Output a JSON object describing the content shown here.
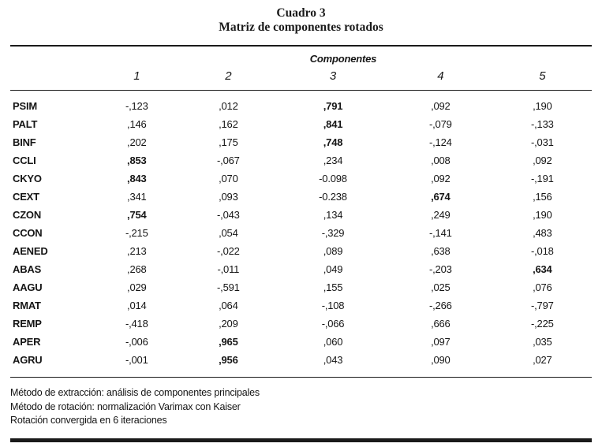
{
  "title": {
    "line1": "Cuadro 3",
    "line2": "Matriz de componentes rotados"
  },
  "table": {
    "group_header": "Componentes",
    "columns": [
      "1",
      "2",
      "3",
      "4",
      "5"
    ],
    "rows": [
      {
        "label": "PSIM",
        "values": [
          "-,123",
          ",012",
          ",791",
          ",092",
          ",190"
        ],
        "bold": [
          2
        ]
      },
      {
        "label": "PALT",
        "values": [
          ",146",
          ",162",
          ",841",
          "-,079",
          "-,133"
        ],
        "bold": [
          2
        ]
      },
      {
        "label": "BINF",
        "values": [
          ",202",
          ",175",
          ",748",
          "-,124",
          "-,031"
        ],
        "bold": [
          2
        ]
      },
      {
        "label": "CCLI",
        "values": [
          ",853",
          "-,067",
          ",234",
          ",008",
          ",092"
        ],
        "bold": [
          0
        ]
      },
      {
        "label": "CKYO",
        "values": [
          ",843",
          ",070",
          "-0.098",
          ",092",
          "-,191"
        ],
        "bold": [
          0
        ]
      },
      {
        "label": "CEXT",
        "values": [
          ",341",
          ",093",
          "-0.238",
          ",674",
          ",156"
        ],
        "bold": [
          3
        ]
      },
      {
        "label": "CZON",
        "values": [
          ",754",
          "-,043",
          ",134",
          ",249",
          ",190"
        ],
        "bold": [
          0
        ]
      },
      {
        "label": "CCON",
        "values": [
          "-,215",
          ",054",
          "-,329",
          "-,141",
          ",483"
        ],
        "bold": []
      },
      {
        "label": "AENED",
        "values": [
          ",213",
          "-,022",
          ",089",
          ",638",
          "-,018"
        ],
        "bold": []
      },
      {
        "label": "ABAS",
        "values": [
          ",268",
          "-,011",
          ",049",
          "-,203",
          ",634"
        ],
        "bold": [
          4
        ]
      },
      {
        "label": "AAGU",
        "values": [
          ",029",
          "-,591",
          ",155",
          ",025",
          ",076"
        ],
        "bold": []
      },
      {
        "label": "RMAT",
        "values": [
          ",014",
          ",064",
          "-,108",
          "-,266",
          "-,797"
        ],
        "bold": []
      },
      {
        "label": "REMP",
        "values": [
          "-,418",
          ",209",
          "-,066",
          ",666",
          "-,225"
        ],
        "bold": []
      },
      {
        "label": "APER",
        "values": [
          "-,006",
          ",965",
          ",060",
          ",097",
          ",035"
        ],
        "bold": [
          1
        ]
      },
      {
        "label": "AGRU",
        "values": [
          "-,001",
          ",956",
          ",043",
          ",090",
          ",027"
        ],
        "bold": [
          1
        ]
      }
    ]
  },
  "footnotes": [
    "Método de extracción: análisis de componentes principales",
    "Método de rotación: normalización Varimax con Kaiser",
    "Rotación convergida en 6 iteraciones"
  ]
}
